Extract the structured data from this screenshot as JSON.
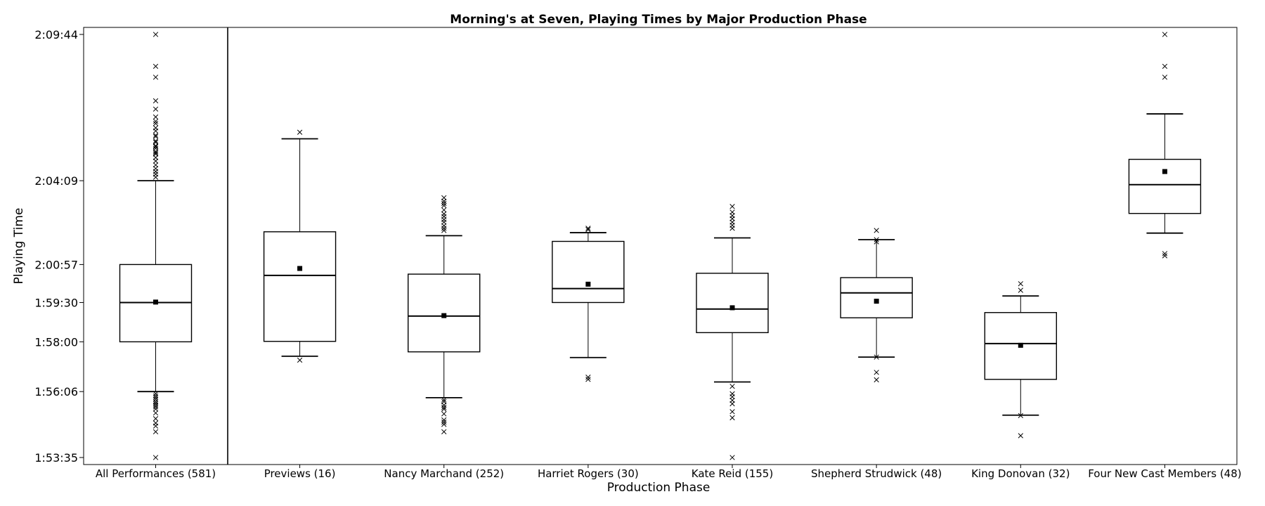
{
  "chart_data": {
    "type": "box",
    "title": "Morning's at Seven, Playing Times by Major Production Phase",
    "xlabel": "Production Phase",
    "ylabel": "Playing Time",
    "y_unit": "seconds",
    "ylim": [
      6800,
      7800
    ],
    "y_ticks": [
      {
        "value": 6815,
        "label": "1:53:35"
      },
      {
        "value": 6966,
        "label": "1:56:06"
      },
      {
        "value": 7080,
        "label": "1:58:00"
      },
      {
        "value": 7170,
        "label": "1:59:30"
      },
      {
        "value": 7257,
        "label": "2:00:57"
      },
      {
        "value": 7449,
        "label": "2:04:09"
      },
      {
        "value": 7784,
        "label": "2:09:44"
      }
    ],
    "grid": false,
    "colors": {
      "axes": "#000000",
      "mean_marker": "#000000"
    },
    "markers": {
      "mean": "filled-square",
      "outlier": "x"
    },
    "categories": [
      {
        "label": "All Performances (581)",
        "whisker_low": 6966,
        "q1": 7080,
        "median": 7170,
        "q3": 7257,
        "whisker_high": 7449,
        "mean": 7171,
        "outliers": [
          7784,
          7711,
          7686,
          7632,
          7613,
          7595,
          7585,
          7580,
          7570,
          7563,
          7553,
          7550,
          7540,
          7537,
          7529,
          7527,
          7523,
          7516,
          7513,
          7510,
          7502,
          7494,
          7485,
          7477,
          7470,
          7464,
          7457,
          6961,
          6956,
          6952,
          6948,
          6943,
          6939,
          6935,
          6931,
          6926,
          6917,
          6904,
          6894,
          6887,
          6874,
          6815
        ]
      },
      {
        "label": "Previews (16)",
        "whisker_low": 7047,
        "q1": 7081,
        "median": 7232,
        "q3": 7332,
        "whisker_high": 7545,
        "mean": 7248,
        "outliers": [
          7560,
          7038
        ]
      },
      {
        "label": "Nancy Marchand (252)",
        "whisker_low": 6952,
        "q1": 7057,
        "median": 7139,
        "q3": 7235,
        "whisker_high": 7323,
        "mean": 7140,
        "outliers": [
          7410,
          7402,
          7397,
          7392,
          7382,
          7373,
          7367,
          7360,
          7354,
          7346,
          7340,
          7335,
          6947,
          6943,
          6935,
          6930,
          6926,
          6915,
          6901,
          6896,
          6891,
          6874
        ]
      },
      {
        "label": "Harriet Rogers (30)",
        "whisker_low": 7044,
        "q1": 7170,
        "median": 7202,
        "q3": 7310,
        "whisker_high": 7330,
        "mean": 7212,
        "outliers": [
          7340,
          7337,
          6999,
          6994
        ]
      },
      {
        "label": "Kate Reid (155)",
        "whisker_low": 6988,
        "q1": 7101,
        "median": 7155,
        "q3": 7237,
        "whisker_high": 7318,
        "mean": 7158,
        "outliers": [
          7390,
          7377,
          7369,
          7362,
          7354,
          7347,
          7340,
          6978,
          6961,
          6954,
          6946,
          6938,
          6920,
          6906,
          6815
        ]
      },
      {
        "label": "Shepherd Strudwick (48)",
        "whisker_low": 7045,
        "q1": 7135,
        "median": 7192,
        "q3": 7227,
        "whisker_high": 7314,
        "mean": 7173,
        "outliers": [
          7335,
          7314,
          7309,
          7045,
          7010,
          6993
        ]
      },
      {
        "label": "King Donovan (32)",
        "whisker_low": 6912,
        "q1": 6994,
        "median": 7076,
        "q3": 7147,
        "whisker_high": 7185,
        "mean": 7072,
        "outliers": [
          7213,
          7198,
          6911,
          6865
        ]
      },
      {
        "label": "Four New Cast Members (48)",
        "whisker_low": 7329,
        "q1": 7374,
        "median": 7440,
        "q3": 7498,
        "whisker_high": 7602,
        "mean": 7470,
        "outliers": [
          7784,
          7711,
          7686,
          7282,
          7277
        ]
      }
    ]
  }
}
